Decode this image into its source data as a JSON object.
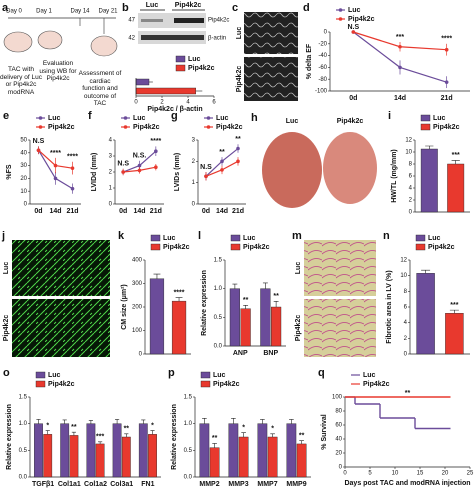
{
  "figure": {
    "a": {
      "panel": "a",
      "days": [
        "Day 0",
        "Day 1",
        "Day 14",
        "Day 21"
      ],
      "steps": [
        "TAC with delivery of Luc or Pip4k2c modRNA",
        "Evaluation using WB for Pip4k2c",
        "Assessment of cardiac function and outcome of TAC"
      ]
    },
    "b": {
      "panel": "b",
      "groups": [
        "Luc",
        "Pip4k2c"
      ],
      "sizes": [
        47,
        42
      ],
      "bands": [
        "Pip4k2c",
        "β-actin"
      ]
    },
    "c": {
      "panel": "c",
      "labels": [
        "Luc",
        "Pip4k2c"
      ]
    },
    "h": {
      "panel": "h",
      "labels": [
        "Luc",
        "Pip4k2c"
      ]
    },
    "j": {
      "panel": "j",
      "labels": [
        "Luc",
        "Pip4k2c"
      ]
    },
    "m": {
      "panel": "m",
      "labels": [
        "Luc",
        "Pip4k2c"
      ]
    }
  },
  "chart_data": [
    {
      "type": "bar",
      "orientation": "horizontal",
      "series": [
        {
          "name": "Luc",
          "color": "#6b4c9a",
          "values": [
            1
          ],
          "errors": [
            0.3
          ]
        },
        {
          "name": "Pip4k2c",
          "color": "#e8392e",
          "values": [
            4.6
          ],
          "errors": [
            0.5
          ]
        }
      ],
      "xlim": [
        0,
        6
      ],
      "xticks": [
        0,
        2,
        4,
        6
      ],
      "xlabel": "Pip4k2c / β-actin"
    },
    {
      "type": "line",
      "panel": "d",
      "categories": [
        "0d",
        "14d",
        "21d"
      ],
      "series": [
        {
          "name": "Luc",
          "color": "#6b4c9a",
          "values": [
            0,
            -60,
            -85
          ],
          "errors": [
            0,
            12,
            10
          ]
        },
        {
          "name": "Pip4k2c",
          "color": "#e8392e",
          "values": [
            0,
            -25,
            -30
          ],
          "errors": [
            0,
            8,
            10
          ]
        }
      ],
      "ylim": [
        -100,
        0
      ],
      "yticks": [
        -100,
        -80,
        -60,
        -40,
        -20,
        0
      ],
      "ylabel": "% delta EF",
      "annotations": [
        "N.S",
        "***",
        "****"
      ]
    },
    {
      "type": "line",
      "panel": "e",
      "categories": [
        "0d",
        "14d",
        "21d"
      ],
      "series": [
        {
          "name": "Luc",
          "color": "#6b4c9a",
          "values": [
            42,
            20,
            12
          ],
          "errors": [
            3,
            5,
            4
          ]
        },
        {
          "name": "Pip4k2c",
          "color": "#e8392e",
          "values": [
            42,
            30,
            28
          ],
          "errors": [
            3,
            6,
            5
          ]
        }
      ],
      "ylim": [
        0,
        50
      ],
      "yticks": [
        0,
        10,
        20,
        30,
        40,
        50
      ],
      "ylabel": "%FS",
      "annotations": [
        "N.S",
        "****",
        "****"
      ]
    },
    {
      "type": "line",
      "panel": "f",
      "categories": [
        "0d",
        "14d",
        "21d"
      ],
      "series": [
        {
          "name": "Luc",
          "color": "#6b4c9a",
          "values": [
            2.0,
            2.4,
            3.3
          ],
          "errors": [
            0.2,
            0.3,
            0.3
          ]
        },
        {
          "name": "Pip4k2c",
          "color": "#e8392e",
          "values": [
            2.0,
            2.1,
            2.3
          ],
          "errors": [
            0.2,
            0.2,
            0.2
          ]
        }
      ],
      "ylim": [
        0,
        4
      ],
      "yticks": [
        0,
        1,
        2,
        3,
        4
      ],
      "ylabel": "LVIDd (mm)",
      "annotations": [
        "N.S",
        "N.S.",
        "****"
      ]
    },
    {
      "type": "line",
      "panel": "g",
      "categories": [
        "0d",
        "14d",
        "21d"
      ],
      "series": [
        {
          "name": "Luc",
          "color": "#6b4c9a",
          "values": [
            1.3,
            2.0,
            2.6
          ],
          "errors": [
            0.2,
            0.2,
            0.2
          ]
        },
        {
          "name": "Pip4k2c",
          "color": "#e8392e",
          "values": [
            1.3,
            1.6,
            2.0
          ],
          "errors": [
            0.2,
            0.2,
            0.2
          ]
        }
      ],
      "ylim": [
        0,
        3
      ],
      "yticks": [
        0,
        1,
        2,
        3
      ],
      "ylabel": "LVIDs (mm)",
      "annotations": [
        "N.S",
        "**",
        "**"
      ]
    },
    {
      "type": "bar",
      "panel": "i",
      "series": [
        {
          "name": "Luc",
          "color": "#6b4c9a",
          "values": [
            10.5
          ],
          "errors": [
            0.5
          ]
        },
        {
          "name": "Pip4k2c",
          "color": "#e8392e",
          "values": [
            8
          ],
          "errors": [
            0.6
          ]
        }
      ],
      "ylim": [
        0,
        12
      ],
      "yticks": [
        0,
        2,
        4,
        6,
        8,
        10,
        12
      ],
      "ylabel": "HW/TL (mg/mm)",
      "annotations": [
        "***"
      ]
    },
    {
      "type": "bar",
      "panel": "k",
      "series": [
        {
          "name": "Luc",
          "color": "#6b4c9a",
          "values": [
            320
          ],
          "errors": [
            20
          ]
        },
        {
          "name": "Pip4k2c",
          "color": "#e8392e",
          "values": [
            225
          ],
          "errors": [
            15
          ]
        }
      ],
      "ylim": [
        0,
        400
      ],
      "yticks": [
        0,
        100,
        200,
        300,
        400
      ],
      "ylabel": "CM size (μm²)",
      "annotations": [
        "****"
      ]
    },
    {
      "type": "bar",
      "panel": "l",
      "categories": [
        "ANP",
        "BNP"
      ],
      "series": [
        {
          "name": "Luc",
          "color": "#6b4c9a",
          "values": [
            1,
            1
          ],
          "errors": [
            0.08,
            0.1
          ]
        },
        {
          "name": "Pip4k2c",
          "color": "#e8392e",
          "values": [
            0.65,
            0.68
          ],
          "errors": [
            0.06,
            0.1
          ]
        }
      ],
      "ylim": [
        0,
        1.5
      ],
      "yticks": [
        {
          "value": 0,
          "label": "0.0"
        },
        0.5,
        {
          "value": 1,
          "label": "1.0"
        },
        1.5
      ],
      "ylabel": "Relative expression",
      "annotations": [
        "**",
        "**"
      ]
    },
    {
      "type": "bar",
      "panel": "n",
      "series": [
        {
          "name": "Luc",
          "color": "#6b4c9a",
          "values": [
            10.3
          ],
          "errors": [
            0.4
          ]
        },
        {
          "name": "Pip4k2c",
          "color": "#e8392e",
          "values": [
            5.2
          ],
          "errors": [
            0.4
          ]
        }
      ],
      "ylim": [
        0,
        12
      ],
      "yticks": [
        0,
        2,
        4,
        6,
        8,
        10,
        12
      ],
      "ylabel": "Fibrotic area in LV (%)",
      "annotations": [
        "***"
      ]
    },
    {
      "type": "bar",
      "panel": "o",
      "categories": [
        "TGFβ1",
        "Col1a1",
        "Col1a2",
        "Col3a1",
        "FN1"
      ],
      "series": [
        {
          "name": "Luc",
          "color": "#6b4c9a",
          "values": [
            1,
            1,
            1,
            1,
            1
          ],
          "errors": [
            0.08,
            0.07,
            0.06,
            0.08,
            0.07
          ]
        },
        {
          "name": "Pip4k2c",
          "color": "#e8392e",
          "values": [
            0.8,
            0.78,
            0.62,
            0.75,
            0.8
          ],
          "errors": [
            0.07,
            0.06,
            0.04,
            0.06,
            0.07
          ]
        }
      ],
      "ylim": [
        0,
        1.5
      ],
      "yticks": [
        {
          "value": 0,
          "label": "0.0"
        },
        0.5,
        {
          "value": 1,
          "label": "1.0"
        },
        1.5
      ],
      "ylabel": "Relative expression",
      "annotations": [
        "*",
        "**",
        "***",
        "**",
        "*"
      ]
    },
    {
      "type": "bar",
      "panel": "p",
      "categories": [
        "MMP2",
        "MMP3",
        "MMP7",
        "MMP9"
      ],
      "series": [
        {
          "name": "Luc",
          "color": "#6b4c9a",
          "values": [
            1,
            1,
            1,
            1
          ],
          "errors": [
            0.1,
            0.1,
            0.08,
            0.08
          ]
        },
        {
          "name": "Pip4k2c",
          "color": "#e8392e",
          "values": [
            0.55,
            0.75,
            0.75,
            0.62
          ],
          "errors": [
            0.08,
            0.08,
            0.06,
            0.06
          ]
        }
      ],
      "ylim": [
        0,
        1.5
      ],
      "yticks": [
        {
          "value": 0,
          "label": "0.0"
        },
        0.5,
        {
          "value": 1,
          "label": "1.0"
        },
        1.5
      ],
      "ylabel": "Relative expression",
      "annotations": [
        "**",
        "*",
        "*",
        "**"
      ]
    },
    {
      "type": "line",
      "step": true,
      "panel": "q",
      "series": [
        {
          "name": "Luc",
          "color": "#6b4c9a",
          "x": [
            0,
            2,
            7,
            14,
            21
          ],
          "values": [
            100,
            90,
            70,
            55,
            55
          ]
        },
        {
          "name": "Pip4k2c",
          "color": "#e8392e",
          "x": [
            0,
            21
          ],
          "values": [
            100,
            100
          ]
        }
      ],
      "xlim": [
        0,
        25
      ],
      "xticks": [
        0,
        5,
        10,
        15,
        20,
        25
      ],
      "xlabel": "Days post TAC and modRNA injection",
      "ylim": [
        0,
        100
      ],
      "yticks": [
        0,
        20,
        40,
        60,
        80,
        100
      ],
      "ylabel": "% Survival",
      "annotations": [
        "**"
      ]
    }
  ]
}
